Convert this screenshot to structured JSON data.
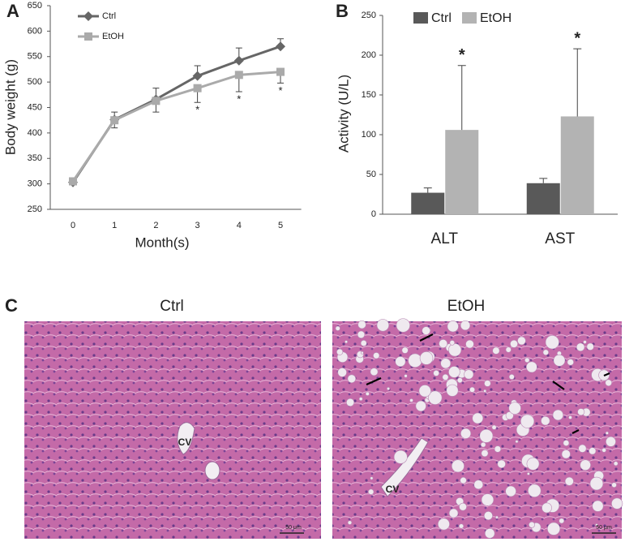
{
  "panels": {
    "a": "A",
    "b": "B",
    "c": "C"
  },
  "chart_data": [
    {
      "type": "line",
      "ylabel": "Body weight (g)",
      "xlabel": "Month(s)",
      "x": [
        0,
        1,
        2,
        3,
        4,
        5
      ],
      "xlim": [
        -0.5,
        5.5
      ],
      "xticks": [
        0,
        1,
        2,
        3,
        4,
        5
      ],
      "ylim": [
        250,
        650
      ],
      "yticks": [
        250,
        300,
        350,
        400,
        450,
        500,
        550,
        600,
        650
      ],
      "series": [
        {
          "name": "Ctrl",
          "color": "#666666",
          "marker": "diamond",
          "values": [
            303,
            426,
            466,
            512,
            542,
            570
          ],
          "errors": [
            5,
            15,
            22,
            20,
            25,
            15
          ]
        },
        {
          "name": "EtOH",
          "color": "#aaaaaa",
          "marker": "square",
          "values": [
            305,
            425,
            463,
            488,
            514,
            520
          ],
          "errors": [
            5,
            15,
            22,
            28,
            33,
            22
          ]
        }
      ],
      "annotations": [
        {
          "x": 3,
          "text": "*"
        },
        {
          "x": 4,
          "text": "*"
        },
        {
          "x": 5,
          "text": "*"
        }
      ],
      "legend": "upper left"
    },
    {
      "type": "bar",
      "ylabel": "Activity (U/L)",
      "categories": [
        "ALT",
        "AST"
      ],
      "ylim": [
        0,
        250
      ],
      "yticks": [
        0,
        50,
        100,
        150,
        200,
        250
      ],
      "series": [
        {
          "name": "Ctrl",
          "color": "#595959",
          "values": [
            27,
            39
          ],
          "errors": [
            6,
            6
          ]
        },
        {
          "name": "EtOH",
          "color": "#b3b3b3",
          "values": [
            106,
            123
          ],
          "errors": [
            81,
            85
          ]
        }
      ],
      "annotations": [
        {
          "category": "ALT",
          "text": "*"
        },
        {
          "category": "AST",
          "text": "*"
        }
      ],
      "legend": "top"
    }
  ],
  "micrographs": [
    {
      "title": "Ctrl",
      "label": "CV",
      "scale_bar": "50 μm"
    },
    {
      "title": "EtOH",
      "label": "CV",
      "scale_bar": "50 μm"
    }
  ]
}
